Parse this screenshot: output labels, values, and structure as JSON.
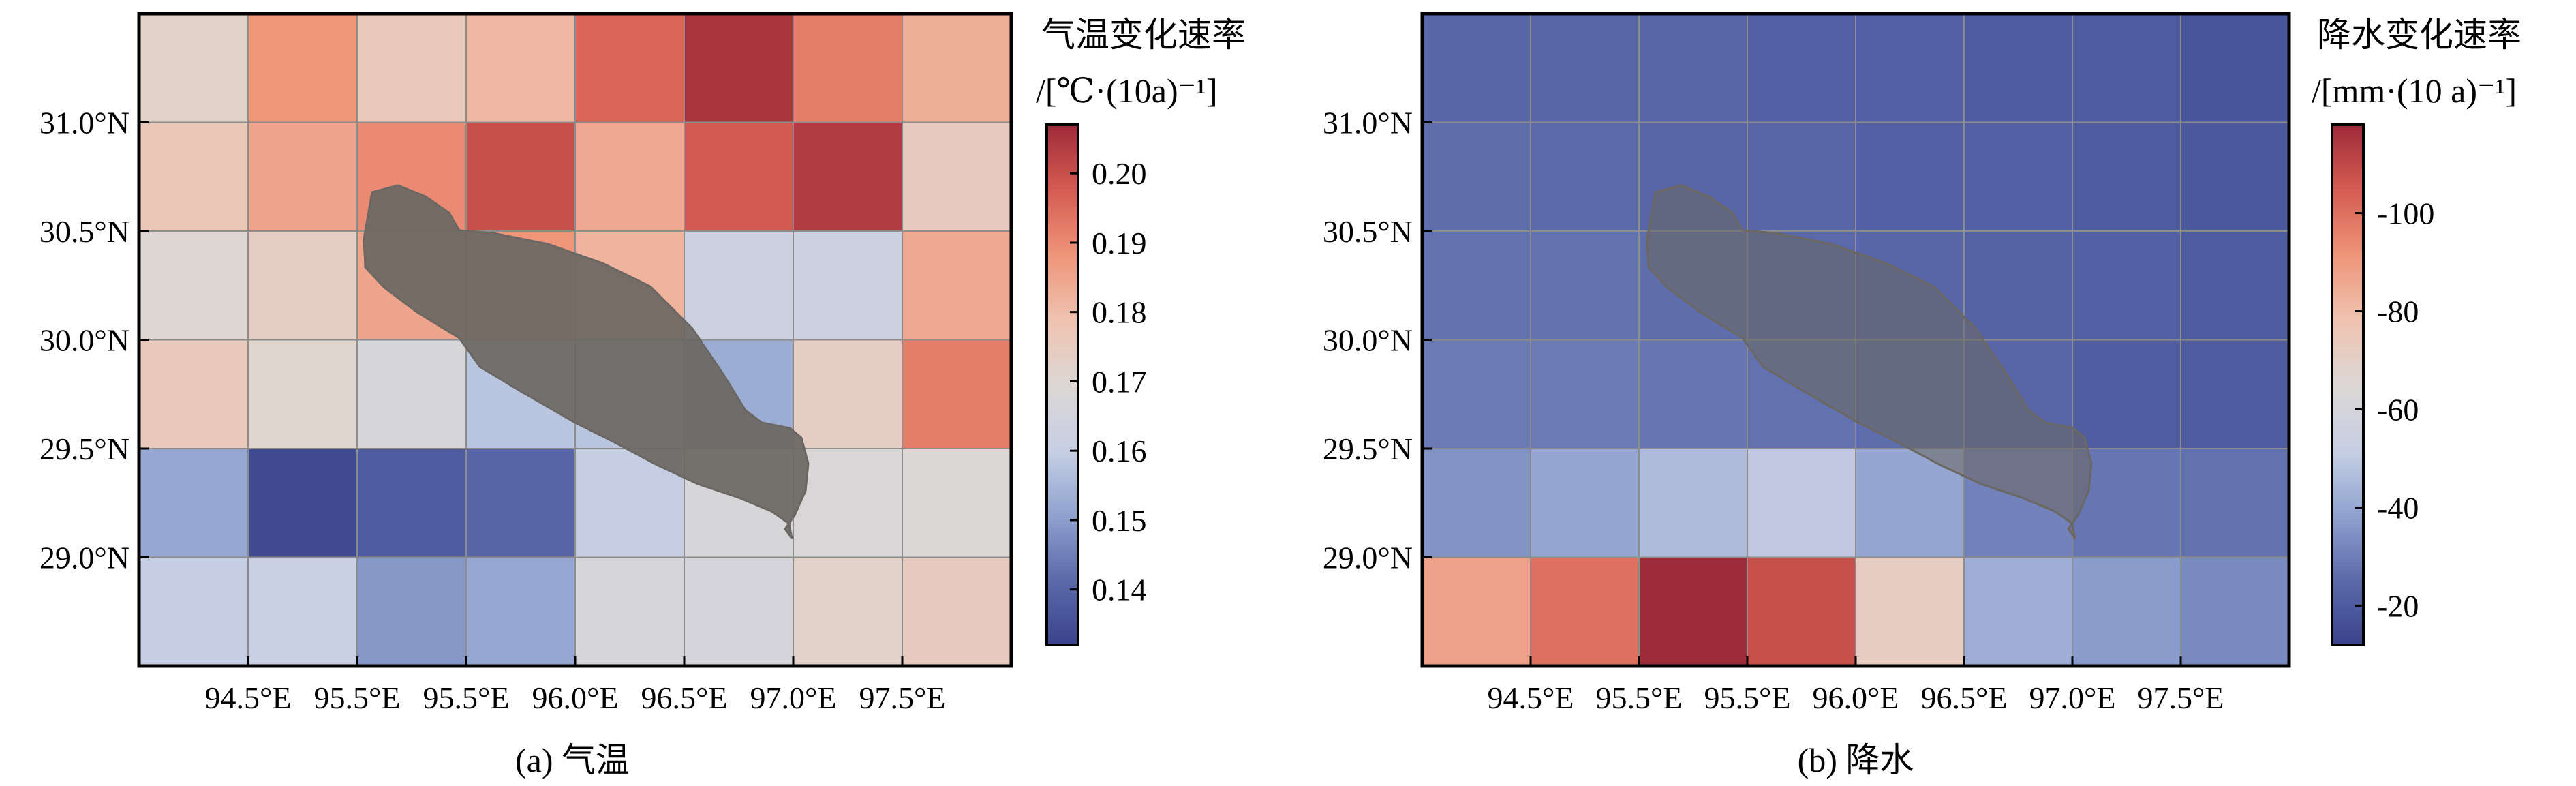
{
  "chart_data": [
    {
      "type": "heatmap",
      "caption": "(a) 气温",
      "colorbar_title": [
        "气温变化速率",
        "/[℃·(10a)⁻¹]"
      ],
      "x_tick_labels": [
        "94.5°E",
        "95.5°E",
        "95.5°E",
        "96.0°E",
        "96.5°E",
        "97.0°E",
        "97.5°E"
      ],
      "y_tick_labels": [
        "31.0°N",
        "30.5°N",
        "30.0°N",
        "29.5°N",
        "29.0°N"
      ],
      "colorbar_ticks": [
        0.2,
        0.19,
        0.18,
        0.17,
        0.16,
        0.15,
        0.14
      ],
      "colorbar_tick_labels": [
        "0.20",
        "0.19",
        "0.18",
        "0.17",
        "0.16",
        "0.15",
        "0.14"
      ],
      "colorbar_range": [
        0.132,
        0.207
      ],
      "colorbar_reversed": false,
      "values": [
        [
          0.172,
          0.188,
          0.176,
          0.181,
          0.196,
          0.205,
          0.192,
          0.183
        ],
        [
          0.177,
          0.185,
          0.19,
          0.2,
          0.184,
          0.198,
          0.204,
          0.175
        ],
        [
          0.17,
          0.174,
          0.185,
          0.188,
          0.182,
          0.162,
          0.163,
          0.184
        ],
        [
          0.176,
          0.171,
          0.167,
          0.158,
          0.158,
          0.153,
          0.174,
          0.192
        ],
        [
          0.152,
          0.134,
          0.138,
          0.14,
          0.16,
          0.167,
          0.168,
          0.169
        ],
        [
          0.16,
          0.161,
          0.149,
          0.152,
          0.167,
          0.166,
          0.172,
          0.175
        ]
      ]
    },
    {
      "type": "heatmap",
      "caption": "(b) 降水",
      "colorbar_title": [
        "降水变化速率",
        "/[mm·(10 a)⁻¹]"
      ],
      "x_tick_labels": [
        "94.5°E",
        "95.5°E",
        "95.5°E",
        "96.0°E",
        "96.5°E",
        "97.0°E",
        "97.5°E"
      ],
      "y_tick_labels": [
        "31.0°N",
        "30.5°N",
        "30.0°N",
        "29.5°N",
        "29.0°N"
      ],
      "colorbar_ticks": [
        -20,
        -40,
        -60,
        -80,
        -100
      ],
      "colorbar_tick_labels": [
        "-20",
        "-40",
        "-60",
        "-80",
        "-100"
      ],
      "colorbar_range": [
        -118,
        -12
      ],
      "colorbar_reversed": true,
      "values": [
        [
          -24,
          -24,
          -24,
          -22,
          -22,
          -20,
          -20,
          -18
        ],
        [
          -26,
          -25,
          -24,
          -24,
          -22,
          -22,
          -20,
          -19
        ],
        [
          -27,
          -27,
          -26,
          -25,
          -24,
          -23,
          -22,
          -20
        ],
        [
          -29,
          -29,
          -28,
          -27,
          -26,
          -24,
          -21,
          -20
        ],
        [
          -35,
          -40,
          -46,
          -50,
          -40,
          -31,
          -28,
          -27
        ],
        [
          -88,
          -100,
          -118,
          -108,
          -72,
          -42,
          -37,
          -33
        ]
      ]
    }
  ],
  "colors": {
    "scale": [
      "#3a438c",
      "#5b6aaa",
      "#8fa2cf",
      "#c7cfe4",
      "#dcd7d4",
      "#efc3b0",
      "#ef9479",
      "#d55c51",
      "#9e2b3a"
    ],
    "grid": "#8c8c8c",
    "lake": "#6b6763"
  }
}
